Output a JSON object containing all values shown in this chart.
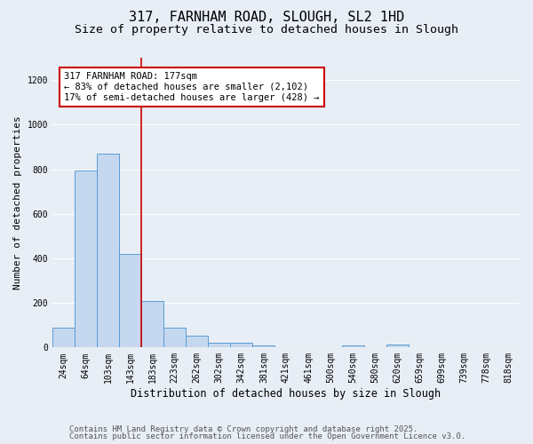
{
  "title1": "317, FARNHAM ROAD, SLOUGH, SL2 1HD",
  "title2": "Size of property relative to detached houses in Slough",
  "xlabel": "Distribution of detached houses by size in Slough",
  "ylabel": "Number of detached properties",
  "bar_labels": [
    "24sqm",
    "64sqm",
    "103sqm",
    "143sqm",
    "183sqm",
    "223sqm",
    "262sqm",
    "302sqm",
    "342sqm",
    "381sqm",
    "421sqm",
    "461sqm",
    "500sqm",
    "540sqm",
    "580sqm",
    "620sqm",
    "659sqm",
    "699sqm",
    "739sqm",
    "778sqm",
    "818sqm"
  ],
  "bar_values": [
    90,
    795,
    870,
    420,
    210,
    90,
    55,
    22,
    22,
    10,
    0,
    0,
    0,
    8,
    0,
    12,
    0,
    0,
    0,
    0,
    0
  ],
  "bar_color": "#c5d8ef",
  "bar_edge_color": "#5b9bd5",
  "vline_color": "#cc0000",
  "annotation_text": "317 FARNHAM ROAD: 177sqm\n← 83% of detached houses are smaller (2,102)\n17% of semi-detached houses are larger (428) →",
  "annotation_box_color": "#ffffff",
  "annotation_box_edge_color": "#cc0000",
  "ylim": [
    0,
    1300
  ],
  "yticks": [
    0,
    200,
    400,
    600,
    800,
    1000,
    1200
  ],
  "background_color": "#e8eef5",
  "plot_bg_color": "#e8eef5",
  "grid_color": "#ffffff",
  "footer1": "Contains HM Land Registry data © Crown copyright and database right 2025.",
  "footer2": "Contains public sector information licensed under the Open Government Licence v3.0.",
  "title1_fontsize": 11,
  "title2_fontsize": 9.5,
  "xlabel_fontsize": 8.5,
  "ylabel_fontsize": 8,
  "tick_fontsize": 7,
  "annotation_fontsize": 7.5,
  "footer_fontsize": 6.5
}
